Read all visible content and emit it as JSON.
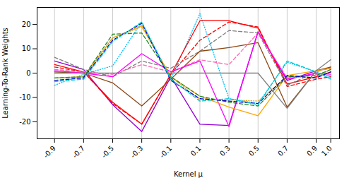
{
  "chart_data": {
    "type": "line",
    "xlabel": "Kernel μ",
    "ylabel": "Learning-To-Rank Weights",
    "x": [
      -0.9,
      -0.7,
      -0.5,
      -0.3,
      -0.1,
      0.1,
      0.3,
      0.5,
      0.7,
      0.9,
      1.0
    ],
    "series": [
      {
        "color": "#9400D3",
        "line_style": "solid",
        "values": [
          5.0,
          1.5,
          -13.0,
          -24.0,
          -1.5,
          -21.0,
          -21.5,
          17.0,
          -3.0,
          1.0,
          2.0
        ]
      },
      {
        "color": "#00BFFF",
        "line_style": "dotted",
        "values": [
          -5.0,
          -0.5,
          3.0,
          21.0,
          -2.5,
          24.5,
          -10.5,
          -12.5,
          4.5,
          0.5,
          -2.0
        ]
      },
      {
        "color": "#FF0000",
        "line_style": "solid",
        "values": [
          3.5,
          0.5,
          -12.0,
          -21.0,
          -0.5,
          21.5,
          21.5,
          18.5,
          -4.5,
          -1.5,
          0.5
        ]
      },
      {
        "color": "#FF0000",
        "line_style": "dashed",
        "values": [
          2.5,
          0.5,
          -12.5,
          -21.0,
          -0.5,
          13.5,
          21.0,
          19.0,
          -5.5,
          -2.5,
          -1.5
        ]
      },
      {
        "color": "#808080",
        "line_style": "dashed",
        "values": [
          6.5,
          1.5,
          -1.5,
          5.0,
          2.0,
          9.0,
          17.5,
          16.5,
          -5.0,
          0.5,
          2.5
        ]
      },
      {
        "color": "#8B4513",
        "line_style": "solid",
        "values": [
          0.5,
          0.0,
          -4.0,
          -13.5,
          -2.5,
          9.0,
          10.5,
          12.5,
          -14.0,
          1.0,
          2.5
        ]
      },
      {
        "color": "#FF69B4",
        "line_style": "dashed",
        "values": [
          1.5,
          0.5,
          -0.5,
          3.5,
          0.5,
          5.5,
          3.5,
          16.5,
          -2.0,
          -0.5,
          -1.0
        ]
      },
      {
        "color": "#FF00FF",
        "line_style": "solid",
        "values": [
          1.0,
          0.0,
          -1.5,
          8.0,
          0.5,
          5.0,
          -22.0,
          17.0,
          -2.5,
          0.0,
          -0.5
        ]
      },
      {
        "color": "#FFA500",
        "line_style": "solid",
        "values": [
          -2.0,
          -1.5,
          14.5,
          19.5,
          -1.5,
          -9.5,
          -14.0,
          -17.5,
          -1.0,
          1.0,
          2.0
        ]
      },
      {
        "color": "#DAA520",
        "line_style": "dotted",
        "values": [
          -2.0,
          -1.5,
          14.5,
          19.0,
          -1.5,
          -11.0,
          -11.0,
          -11.5,
          -1.5,
          -2.0,
          1.5
        ]
      },
      {
        "color": "#228B22",
        "line_style": "dashed",
        "values": [
          -2.0,
          -1.5,
          16.0,
          16.5,
          -1.5,
          -9.5,
          -12.0,
          -13.5,
          -1.5,
          -1.0,
          1.5
        ]
      },
      {
        "color": "#0000CD",
        "line_style": "dashed",
        "values": [
          -3.0,
          -2.0,
          13.5,
          20.5,
          -3.0,
          -10.5,
          -11.5,
          -12.5,
          -1.0,
          -2.0,
          0.5
        ]
      },
      {
        "color": "#00CED1",
        "line_style": "dashed",
        "values": [
          -3.5,
          -2.5,
          13.0,
          21.0,
          -2.5,
          -11.5,
          -10.5,
          -13.0,
          5.0,
          0.5,
          -2.5
        ]
      },
      {
        "color": "#808080",
        "line_style": "solid",
        "values": [
          0.0,
          0.0,
          0.0,
          0.0,
          0.0,
          0.0,
          0.0,
          0.0,
          -14.5,
          1.0,
          5.5
        ]
      }
    ],
    "xlim": [
      -1.02,
      1.06
    ],
    "xticks": [
      -0.9,
      -0.7,
      -0.5,
      -0.3,
      -0.1,
      0.1,
      0.3,
      0.5,
      0.7,
      0.9,
      {
        "value": 1.0,
        "label": "1.0"
      }
    ],
    "ylim": [
      -27,
      27
    ],
    "yticks": [
      -20,
      -10,
      0,
      10,
      20
    ],
    "grid": "x"
  }
}
